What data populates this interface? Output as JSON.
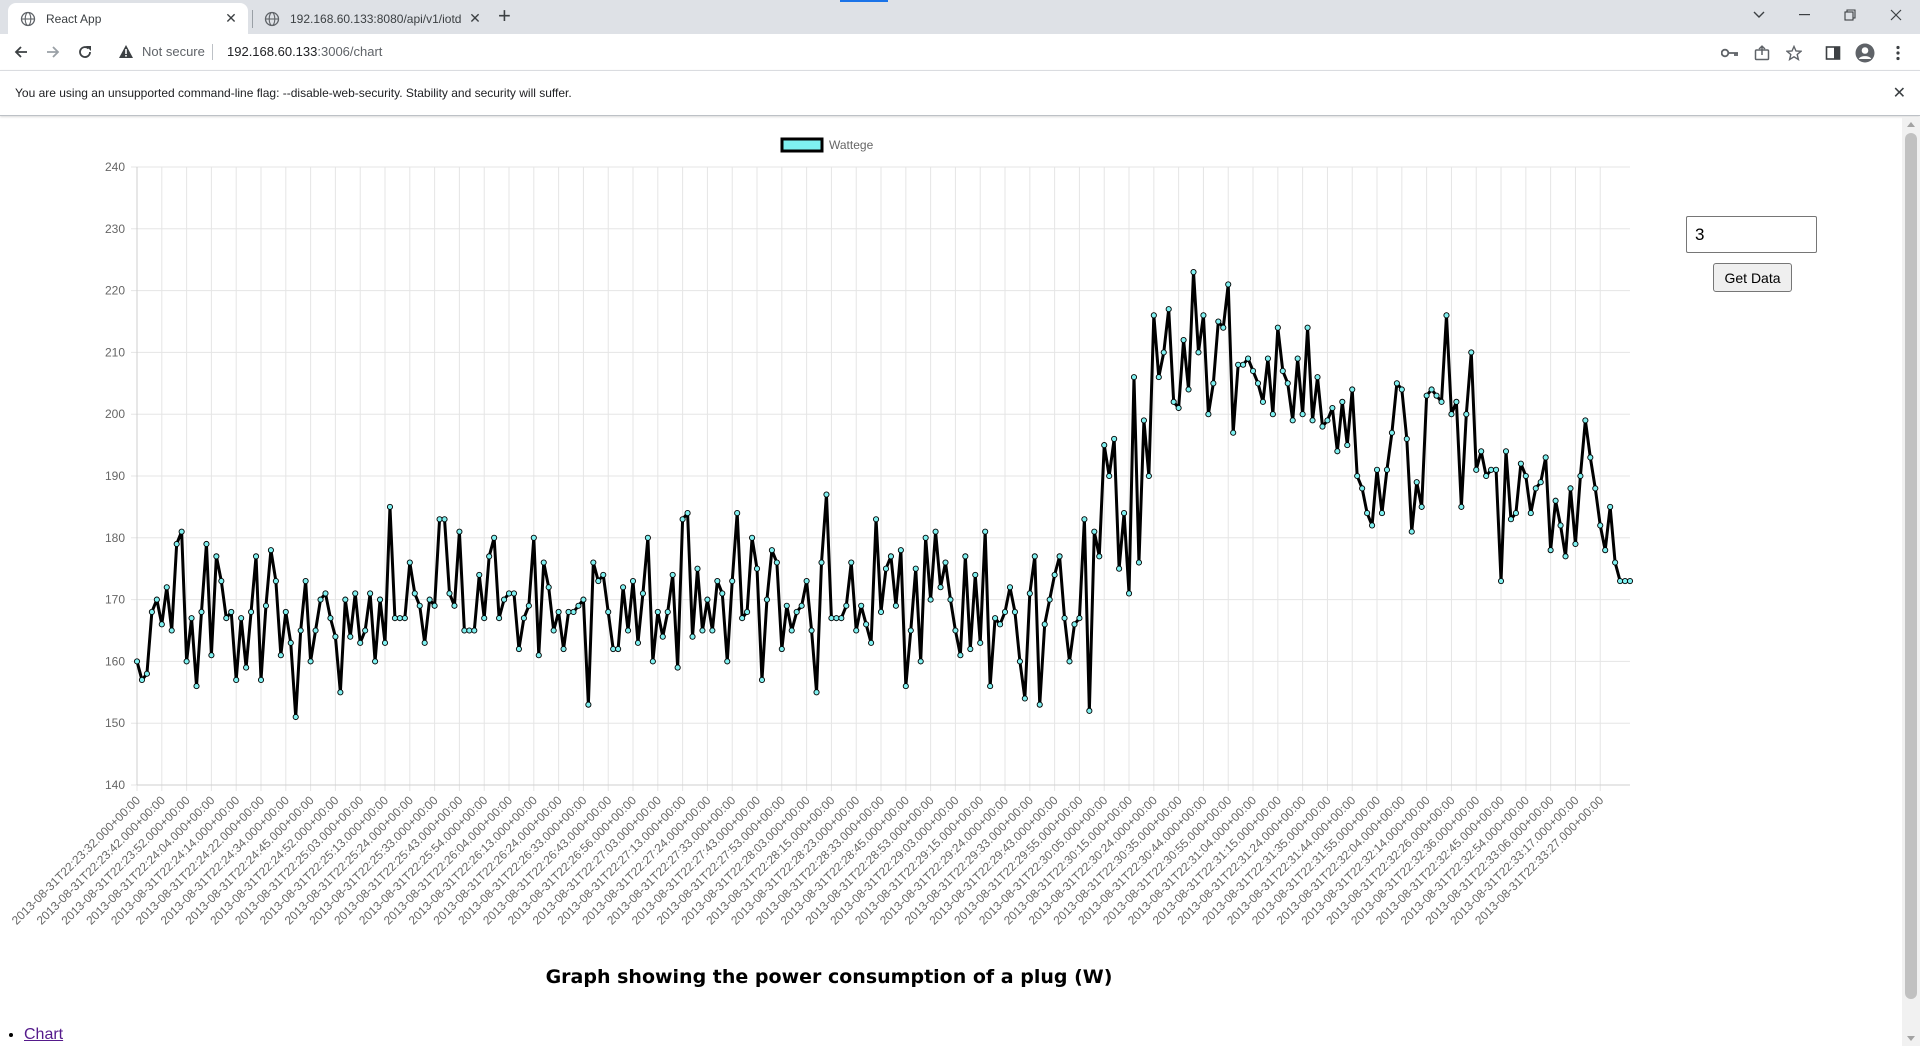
{
  "browser": {
    "tabs": [
      {
        "title": "React App",
        "active": true
      },
      {
        "title": "192.168.60.133:8080/api/v1/iotd",
        "active": false
      }
    ],
    "address": {
      "security_label": "Not secure",
      "host": "192.168.60.133",
      "path": ":3006/chart"
    },
    "infobar_text": "You are using an unsupported command-line flag: --disable-web-security. Stability and security will suffer."
  },
  "controls": {
    "input_value": "3",
    "get_data_label": "Get Data"
  },
  "caption": "Graph showing the power consumption of a plug (W)",
  "nav": {
    "items": [
      {
        "label": "Chart"
      }
    ]
  },
  "chart_data": {
    "type": "line",
    "series": [
      {
        "name": "Wattege",
        "color": "#000000",
        "point_color": "#7ff0f0"
      }
    ],
    "ylim": [
      140,
      240
    ],
    "ytick_step": 10,
    "grid": true,
    "legend": "top-center",
    "x_labels": [
      "2013-08-31T22:23:32.000+00:00",
      "2013-08-31T22:23:42.000+00:00",
      "2013-08-31T22:23:52.000+00:00",
      "2013-08-31T22:24:04.000+00:00",
      "2013-08-31T22:24:14.000+00:00",
      "2013-08-31T22:24:22.000+00:00",
      "2013-08-31T22:24:34.000+00:00",
      "2013-08-31T22:24:45.000+00:00",
      "2013-08-31T22:24:52.000+00:00",
      "2013-08-31T22:25:03.000+00:00",
      "2013-08-31T22:25:13.000+00:00",
      "2013-08-31T22:25:24.000+00:00",
      "2013-08-31T22:25:33.000+00:00",
      "2013-08-31T22:25:43.000+00:00",
      "2013-08-31T22:25:54.000+00:00",
      "2013-08-31T22:26:04.000+00:00",
      "2013-08-31T22:26:13.000+00:00",
      "2013-08-31T22:26:24.000+00:00",
      "2013-08-31T22:26:33.000+00:00",
      "2013-08-31T22:26:43.000+00:00",
      "2013-08-31T22:26:56.000+00:00",
      "2013-08-31T22:27:03.000+00:00",
      "2013-08-31T22:27:13.000+00:00",
      "2013-08-31T22:27:24.000+00:00",
      "2013-08-31T22:27:33.000+00:00",
      "2013-08-31T22:27:43.000+00:00",
      "2013-08-31T22:27:53.000+00:00",
      "2013-08-31T22:28:03.000+00:00",
      "2013-08-31T22:28:15.000+00:00",
      "2013-08-31T22:28:23.000+00:00",
      "2013-08-31T22:28:33.000+00:00",
      "2013-08-31T22:28:45.000+00:00",
      "2013-08-31T22:28:53.000+00:00",
      "2013-08-31T22:29:03.000+00:00",
      "2013-08-31T22:29:15.000+00:00",
      "2013-08-31T22:29:24.000+00:00",
      "2013-08-31T22:29:33.000+00:00",
      "2013-08-31T22:29:43.000+00:00",
      "2013-08-31T22:29:55.000+00:00",
      "2013-08-31T22:30:05.000+00:00",
      "2013-08-31T22:30:15.000+00:00",
      "2013-08-31T22:30:24.000+00:00",
      "2013-08-31T22:30:35.000+00:00",
      "2013-08-31T22:30:44.000+00:00",
      "2013-08-31T22:30:55.000+00:00",
      "2013-08-31T22:31:04.000+00:00",
      "2013-08-31T22:31:15.000+00:00",
      "2013-08-31T22:31:24.000+00:00",
      "2013-08-31T22:31:35.000+00:00",
      "2013-08-31T22:31:44.000+00:00",
      "2013-08-31T22:31:55.000+00:00",
      "2013-08-31T22:32:04.000+00:00",
      "2013-08-31T22:32:14.000+00:00",
      "2013-08-31T22:32:26.000+00:00",
      "2013-08-31T22:32:36.000+00:00",
      "2013-08-31T22:32:45.000+00:00",
      "2013-08-31T22:32:54.000+00:00",
      "2013-08-31T22:33:06.000+00:00",
      "2013-08-31T22:33:17.000+00:00",
      "2013-08-31T22:33:27.000+00:00"
    ],
    "points_per_label": 5,
    "values": [
      160,
      157,
      158,
      168,
      170,
      166,
      172,
      165,
      179,
      181,
      160,
      167,
      156,
      168,
      179,
      161,
      177,
      173,
      167,
      168,
      157,
      167,
      159,
      168,
      177,
      157,
      169,
      178,
      173,
      161,
      168,
      163,
      151,
      165,
      173,
      160,
      165,
      170,
      171,
      167,
      164,
      155,
      170,
      164,
      171,
      163,
      165,
      171,
      160,
      170,
      163,
      185,
      167,
      167,
      167,
      176,
      171,
      169,
      163,
      170,
      169,
      183,
      183,
      171,
      169,
      181,
      165,
      165,
      165,
      174,
      167,
      177,
      180,
      167,
      170,
      171,
      171,
      162,
      167,
      169,
      180,
      161,
      176,
      172,
      165,
      168,
      162,
      168,
      168,
      169,
      170,
      153,
      176,
      173,
      174,
      168,
      162,
      162,
      172,
      165,
      173,
      163,
      171,
      180,
      160,
      168,
      164,
      168,
      174,
      159,
      183,
      184,
      164,
      175,
      165,
      170,
      165,
      173,
      171,
      160,
      173,
      184,
      167,
      168,
      180,
      175,
      157,
      170,
      178,
      176,
      162,
      169,
      165,
      168,
      169,
      173,
      165,
      155,
      176,
      187,
      167,
      167,
      167,
      169,
      176,
      165,
      169,
      166,
      163,
      183,
      168,
      175,
      177,
      169,
      178,
      156,
      165,
      175,
      160,
      180,
      170,
      181,
      172,
      176,
      170,
      165,
      161,
      177,
      162,
      174,
      163,
      181,
      156,
      167,
      166,
      168,
      172,
      168,
      160,
      154,
      171,
      177,
      153,
      166,
      170,
      174,
      177,
      167,
      160,
      166,
      167,
      183,
      152,
      181,
      177,
      195,
      190,
      196,
      175,
      184,
      171,
      206,
      176,
      199,
      190,
      216,
      206,
      210,
      217,
      202,
      201,
      212,
      204,
      223,
      210,
      216,
      200,
      205,
      215,
      214,
      221,
      197,
      208,
      208,
      209,
      207,
      205,
      202,
      209,
      200,
      214,
      207,
      205,
      199,
      209,
      200,
      214,
      199,
      206,
      198,
      199,
      201,
      194,
      202,
      195,
      204,
      190,
      188,
      184,
      182,
      191,
      184,
      191,
      197,
      205,
      204,
      196,
      181,
      189,
      185,
      203,
      204,
      203,
      202,
      216,
      200,
      202,
      185,
      200,
      210,
      191,
      194,
      190,
      191,
      191,
      173,
      194,
      183,
      184,
      192,
      190,
      184,
      188,
      189,
      193,
      178,
      186,
      182,
      177,
      188,
      179,
      190,
      199,
      193,
      188,
      182,
      178,
      185,
      176,
      173,
      173,
      173
    ]
  }
}
